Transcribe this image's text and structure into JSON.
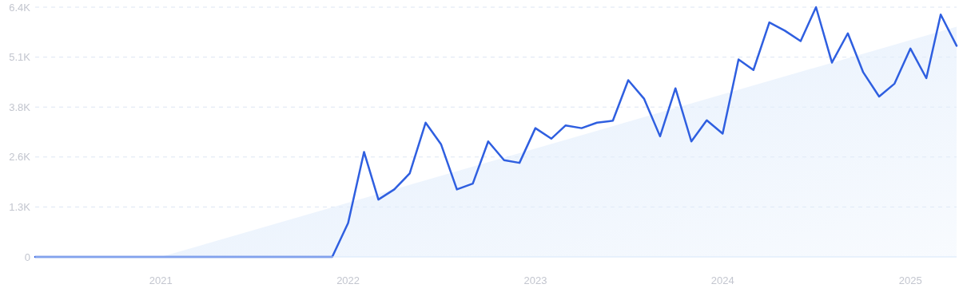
{
  "chart_data": {
    "type": "line",
    "x": [
      "2020-05",
      "2020-06",
      "2020-07",
      "2020-08",
      "2020-09",
      "2020-10",
      "2020-11",
      "2020-12",
      "2021-01",
      "2021-02",
      "2021-03",
      "2021-04",
      "2021-05",
      "2021-06",
      "2021-07",
      "2021-08",
      "2021-09",
      "2021-10",
      "2021-11",
      "2021-12",
      "2022-01",
      "2022-02",
      "2022-03",
      "2022-04",
      "2022-05",
      "2022-06",
      "2022-07",
      "2022-08",
      "2022-09",
      "2022-10",
      "2022-11",
      "2022-12",
      "2023-01",
      "2023-02",
      "2023-03",
      "2023-04",
      "2023-05",
      "2023-06",
      "2023-07",
      "2023-08",
      "2023-09",
      "2023-10",
      "2023-11",
      "2023-12",
      "2024-01",
      "2024-02",
      "2024-03",
      "2024-04",
      "2024-05",
      "2024-06",
      "2024-07",
      "2024-08",
      "2024-09",
      "2024-10",
      "2024-11",
      "2024-12",
      "2025-01",
      "2025-02",
      "2025-03",
      "2025-04"
    ],
    "series": [
      {
        "type": "area",
        "color": "#e3eefc",
        "x": [
          "2021-01",
          "2025-04"
        ],
        "values": [
          0,
          5900
        ]
      },
      {
        "color": "#2f5fe0",
        "values": [
          0,
          0,
          0,
          0,
          0,
          0,
          0,
          0,
          0,
          0,
          0,
          0,
          0,
          0,
          0,
          0,
          0,
          0,
          0,
          0,
          870,
          2690,
          1470,
          1730,
          2140,
          3440,
          2890,
          1730,
          1880,
          2960,
          2480,
          2410,
          3300,
          3030,
          3370,
          3300,
          3440,
          3490,
          4530,
          4050,
          3090,
          4320,
          2960,
          3500,
          3160,
          5060,
          4790,
          6010,
          5800,
          5530,
          6400,
          4980,
          5730,
          4730,
          4110,
          4440,
          5340,
          4580,
          6210,
          5410
        ]
      }
    ],
    "xlim": [
      "2020-05",
      "2025-04"
    ],
    "xticks": [
      "2021",
      "2022",
      "2023",
      "2024",
      "2025"
    ],
    "ylim": [
      0,
      6400
    ],
    "yticks": [
      0,
      {
        "value": 1280,
        "label": "1.3K"
      },
      {
        "value": 2560,
        "label": "2.6K"
      },
      {
        "value": 3840,
        "label": "3.8K"
      },
      {
        "value": 5120,
        "label": "5.1K"
      },
      {
        "value": 6400,
        "label": "6.4K"
      }
    ],
    "grid": "y",
    "line_style": "solid",
    "marker": "none"
  }
}
